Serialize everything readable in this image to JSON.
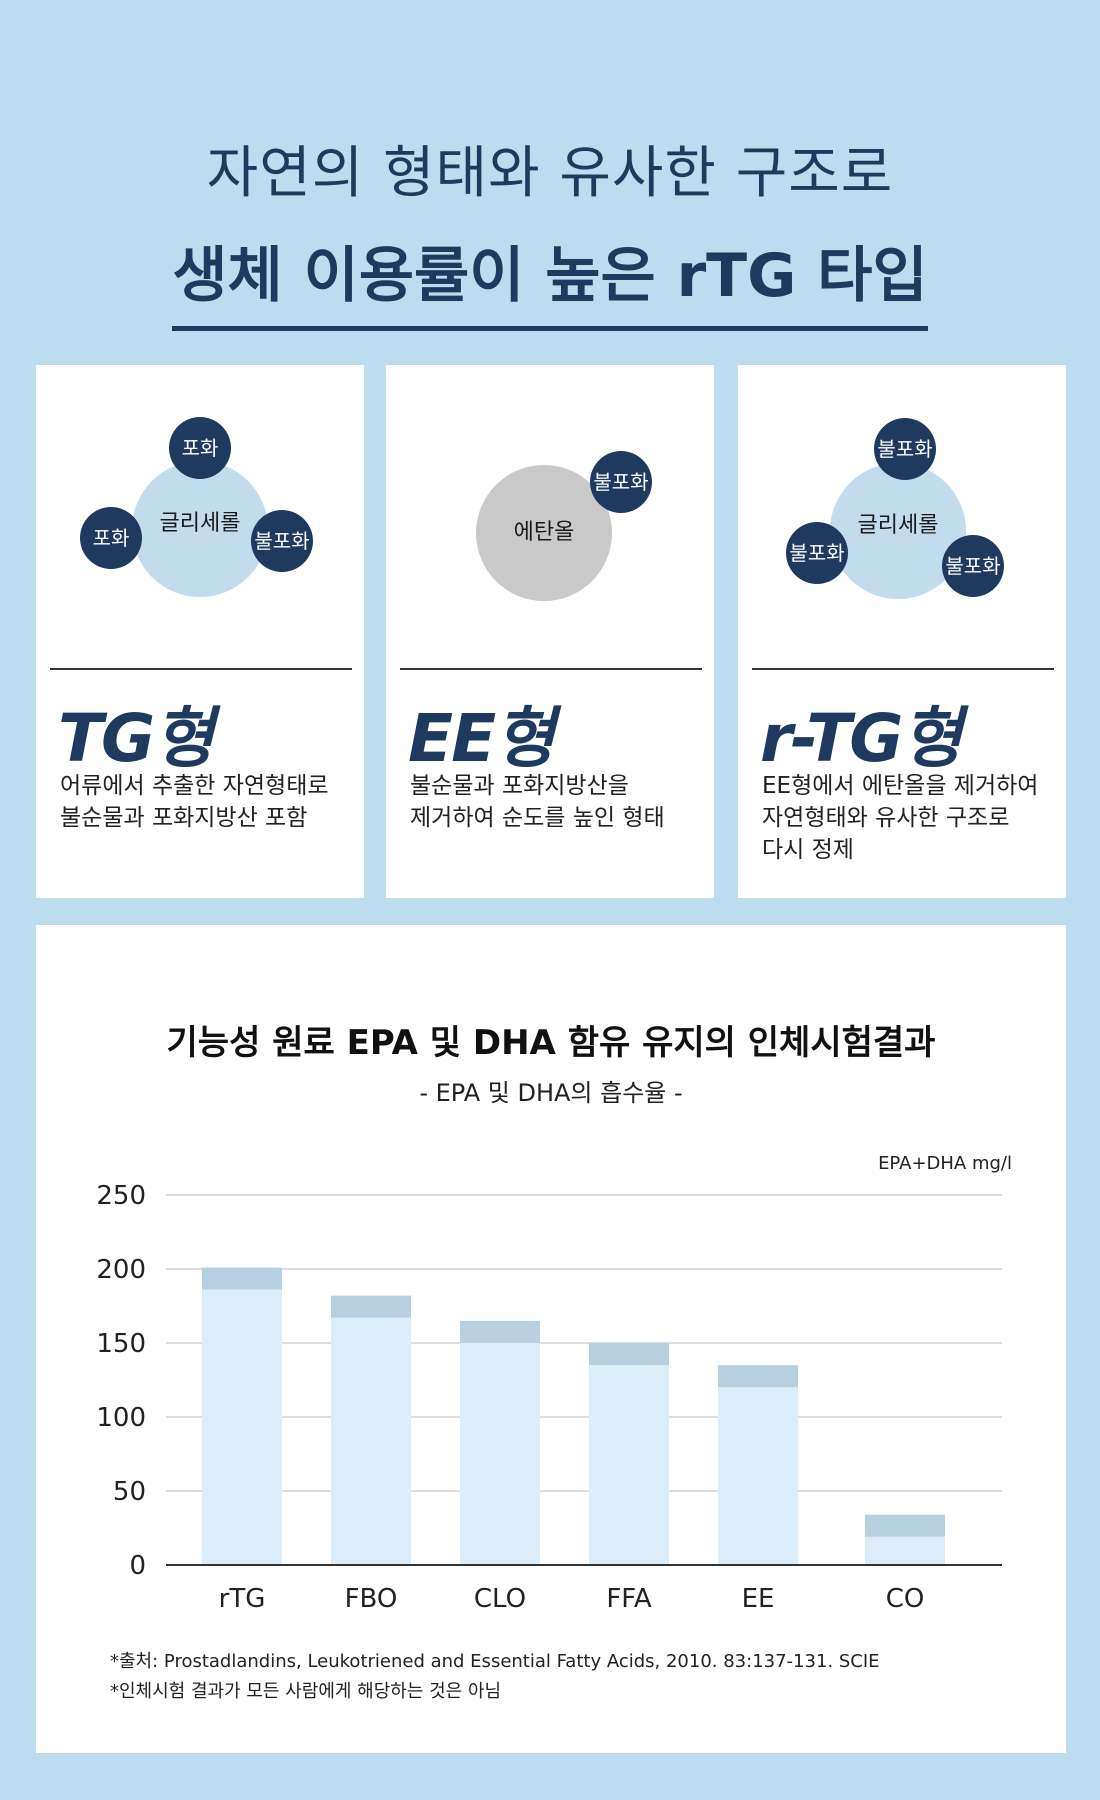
{
  "headline": {
    "line1": "자연의 형태와 유사한 구조로",
    "line2": "생체 이용률이 높은 rTG 타입"
  },
  "cards": [
    {
      "type_name": "TG형",
      "center": "글리세롤",
      "satellites": [
        "포화",
        "포화",
        "불포화"
      ],
      "desc": [
        "어류에서 추출한 자연형태로",
        "불순물과 포화지방산 포함"
      ]
    },
    {
      "type_name": "EE형",
      "center": "에탄올",
      "satellites": [
        "불포화"
      ],
      "desc": [
        "불순물과 포화지방산을",
        "제거하여 순도를 높인 형태"
      ]
    },
    {
      "type_name": "r-TG형",
      "center": "글리세롤",
      "satellites": [
        "불포화",
        "불포화",
        "불포화"
      ],
      "desc": [
        "EE형에서 에탄올을 제거하여",
        "자연형태와 유사한 구조로",
        "다시 정제"
      ]
    }
  ],
  "colors": {
    "background": "#bcdcef",
    "navy": "#1e3a5f",
    "bar_lower": "#dcecf8",
    "bar_upper": "#b6d0e2",
    "grey_circle": "#c9c9c9"
  },
  "chart_data": {
    "type": "bar",
    "title": "기능성 원료 EPA 및 DHA 함유 유지의 인체시험결과",
    "subtitle": "- EPA 및 DHA의 흡수율 -",
    "unit_label": "EPA+DHA mg/l",
    "categories": [
      "rTG",
      "FBO",
      "CLO",
      "FFA",
      "EE",
      "CO"
    ],
    "values": [
      201,
      182,
      165,
      150,
      135,
      34
    ],
    "yticks": [
      0,
      50,
      100,
      150,
      200,
      250
    ],
    "ylim": [
      0,
      250
    ],
    "grid": true,
    "legend": "none"
  },
  "source": {
    "line1": "*출처: Prostadlandins, Leukotriened and Essential Fatty Acids, 2010. 83:137-131. SCIE",
    "line2": "*인체시험 결과가 모든 사람에게 해당하는 것은 아님"
  }
}
